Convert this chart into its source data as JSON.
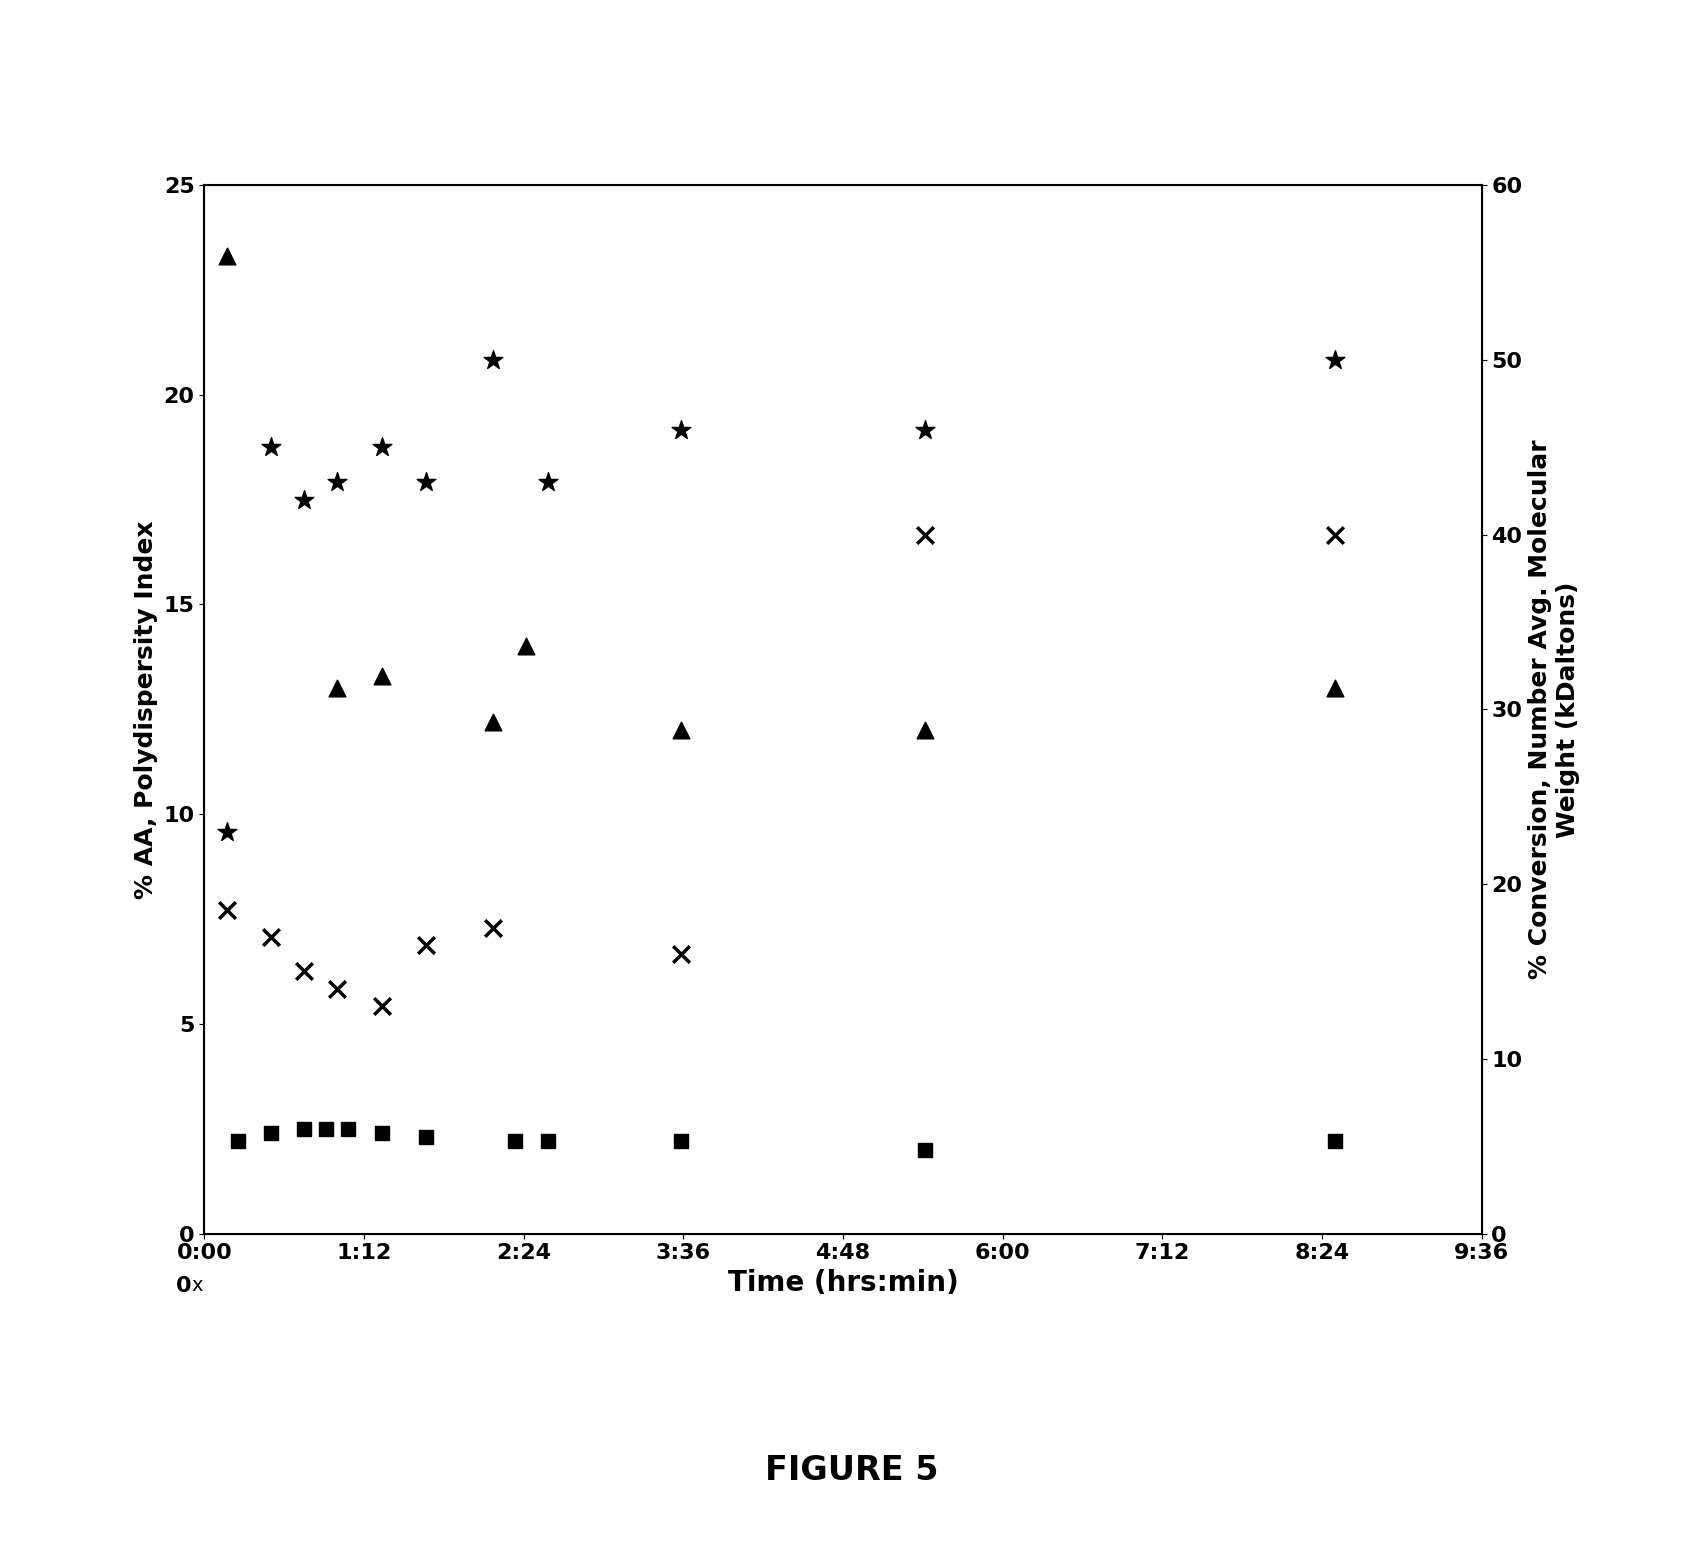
{
  "title": "",
  "xlabel": "Time (hrs:min)",
  "ylabel_left": "% AA, Polydispersity Index",
  "ylabel_right": "% Conversion, Number Avg. Molecular\nWeight (kDaltons)",
  "xlim_minutes": [
    0,
    576
  ],
  "ylim_left": [
    0,
    25
  ],
  "ylim_right": [
    0,
    60
  ],
  "xtick_minutes": [
    0,
    72,
    144,
    216,
    288,
    360,
    432,
    504,
    576
  ],
  "xtick_labels": [
    "0:00",
    "1:12",
    "2:24",
    "3:36",
    "4:48",
    "6:00",
    "7:12",
    "8:24",
    "9:36"
  ],
  "yticks_left": [
    0,
    5,
    10,
    15,
    20,
    25
  ],
  "yticks_right": [
    0,
    10,
    20,
    30,
    40,
    50,
    60
  ],
  "polydispersity_index": {
    "time_min": [
      15,
      30,
      45,
      55,
      65,
      80,
      100,
      140,
      155,
      215,
      325,
      510
    ],
    "values": [
      2.2,
      2.4,
      2.5,
      2.5,
      2.5,
      2.4,
      2.3,
      2.2,
      2.2,
      2.2,
      2.0,
      2.2
    ],
    "marker": "s",
    "color": "black",
    "label": "Polydispersity Index",
    "markersize": 10
  },
  "pct_AA": {
    "time_min": [
      10,
      60,
      80,
      130,
      145,
      215,
      325,
      510
    ],
    "values": [
      23.3,
      13.0,
      13.3,
      12.2,
      14.0,
      12.0,
      12.0,
      13.0
    ],
    "marker": "^",
    "color": "black",
    "label": "% AA",
    "markersize": 12
  },
  "number_avg_mw": {
    "time_min": [
      10,
      30,
      45,
      60,
      80,
      100,
      130,
      215,
      325,
      510
    ],
    "values_left": [
      18.5,
      17.0,
      15.0,
      14.0,
      13.0,
      16.5,
      17.5,
      16.0,
      16.5,
      16.5
    ],
    "marker": "x",
    "color": "black",
    "label": "Number Avg. MW",
    "markersize": 12
  },
  "pct_conversion": {
    "time_min": [
      10,
      30,
      45,
      60,
      80,
      100,
      130,
      155,
      215,
      325,
      510
    ],
    "values_left": [
      9.5,
      18.5,
      17.2,
      17.5,
      18.0,
      17.5,
      20.5,
      17.5,
      19.0,
      19.0,
      20.5
    ],
    "marker": "x",
    "color": "black",
    "label": "% Conversion",
    "markersize": 12
  },
  "figure_caption": "FIGURE 5",
  "background_color": "white",
  "outer_box_color": "black"
}
